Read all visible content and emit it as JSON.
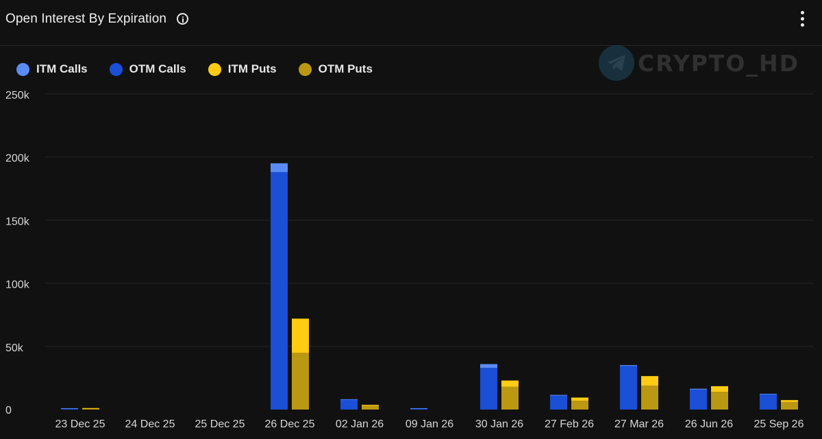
{
  "header": {
    "title": "Open Interest By Expiration",
    "info_icon": "info-icon",
    "menu_icon": "kebab-menu-icon"
  },
  "watermark": {
    "text": "CRYPTO_HD",
    "icon": "telegram-icon"
  },
  "colors": {
    "background": "#111111",
    "itm_calls": "#5b8cf5",
    "otm_calls": "#1a4fd6",
    "itm_puts": "#ffcc14",
    "otm_puts": "#bb9812",
    "grid": "#262626"
  },
  "chart_data": {
    "type": "bar",
    "stacked": true,
    "title": "Open Interest By Expiration",
    "xlabel": "",
    "ylabel": "",
    "ylim": [
      0,
      250000
    ],
    "yticks": [
      0,
      50000,
      100000,
      150000,
      200000,
      250000
    ],
    "ytick_labels": [
      "0",
      "50k",
      "100k",
      "150k",
      "200k",
      "250k"
    ],
    "grid": true,
    "legend_position": "top-left",
    "legend": [
      "ITM Calls",
      "OTM Calls",
      "ITM Puts",
      "OTM Puts"
    ],
    "categories": [
      "23 Dec 25",
      "24 Dec 25",
      "25 Dec 25",
      "26 Dec 25",
      "02 Jan 26",
      "09 Jan 26",
      "30 Jan 26",
      "27 Feb 26",
      "27 Mar 26",
      "26 Jun 26",
      "25 Sep 26"
    ],
    "series": [
      {
        "name": "ITM Calls",
        "stack": "calls",
        "values": [
          100,
          0,
          0,
          7000,
          200,
          100,
          3000,
          600,
          700,
          700,
          500
        ]
      },
      {
        "name": "OTM Calls",
        "stack": "calls",
        "values": [
          1000,
          0,
          0,
          188000,
          8000,
          1000,
          33000,
          11000,
          34500,
          15800,
          12000
        ]
      },
      {
        "name": "ITM Puts",
        "stack": "puts",
        "values": [
          200,
          0,
          0,
          27000,
          700,
          0,
          5000,
          2500,
          7500,
          4500,
          1500
        ]
      },
      {
        "name": "OTM Puts",
        "stack": "puts",
        "values": [
          1000,
          0,
          0,
          45000,
          3000,
          0,
          18000,
          7000,
          19000,
          14000,
          6000
        ]
      }
    ]
  }
}
